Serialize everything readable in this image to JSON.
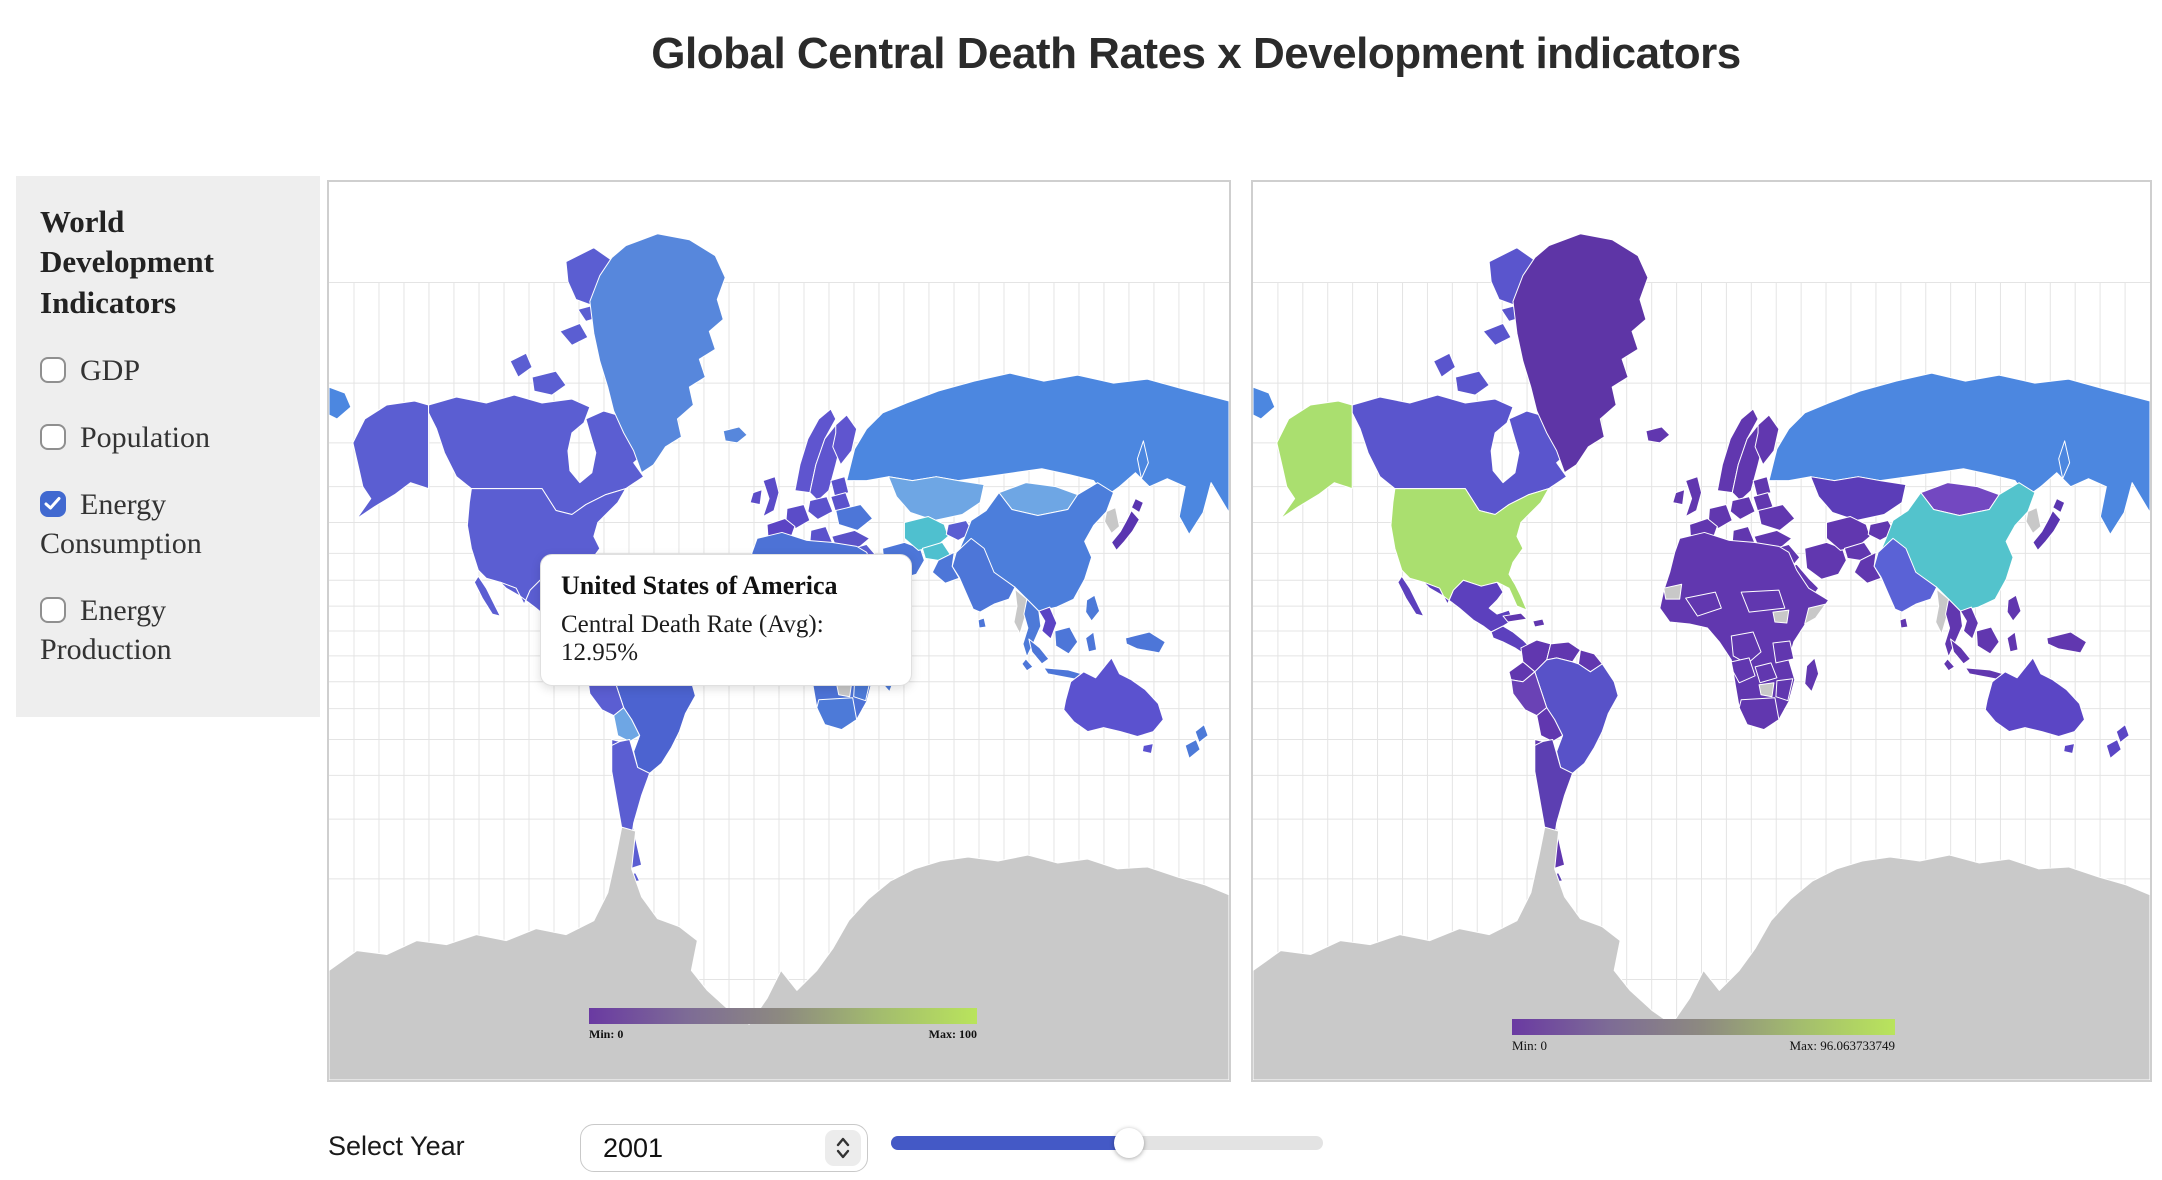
{
  "page": {
    "title": "Global Central Death Rates x Development indicators"
  },
  "sidebar": {
    "heading": "World Development Indicators",
    "items": [
      {
        "label": "GDP",
        "checked": false
      },
      {
        "label": "Population",
        "checked": false
      },
      {
        "label": "Energy Consumption",
        "checked": true
      },
      {
        "label": "Energy Production",
        "checked": false
      }
    ]
  },
  "tooltip": {
    "country": "United States of America",
    "line": "Central Death Rate (Avg): 12.95%"
  },
  "maps": {
    "left": {
      "legend": {
        "min_label": "Min: 0",
        "max_label": "Max: 100",
        "min": 0,
        "max": 100
      },
      "colors": {
        "default": "#5b5ed2",
        "chukotka": "#4c87e0",
        "alaska": "#5b5ed2",
        "canada": "#5b5ed2",
        "arctic1": "#5b5ed2",
        "arctic2": "#5b5ed2",
        "arctic3": "#5b5ed2",
        "arctic4": "#5b5ed2",
        "arctic5": "#5b5ed2",
        "arctic6": "#5b5ed2",
        "greenland": "#5787dc",
        "iceland": "#5787dc",
        "usa": "#5b5ed2",
        "baja": "#5b5ed2",
        "mexico": "#5b5ed2",
        "centralamerica": "#5b5ed2",
        "cuba": "#4d76d8",
        "hispaniola": "#4d76d8",
        "colombia": "#4d76d8",
        "venezuela": "#4d76d8",
        "guyanas": "#4d76d8",
        "brazil": "#4c63d0",
        "ecuador": "#5b5ed2",
        "peru": "#5b5ed2",
        "bolivia": "#6ea6e4",
        "chile": "#5b5ed2",
        "argentina": "#5b5ed2",
        "tierradelfuego": "#5b5ed2",
        "uk": "#5b4cc8",
        "ireland": "#5b4cc8",
        "norway": "#5f55cf",
        "sweden": "#5f55cf",
        "finland": "#5f55cf",
        "baltics": "#5b52cc",
        "france": "#5b44c4",
        "iberia": "#4d6fd6",
        "italy": "#5b52cc",
        "germany": "#5b4cc8",
        "poland": "#5b52cc",
        "balkans": "#5b52cc",
        "easteurope": "#5b52cc",
        "ukraine": "#4d76d8",
        "turkey": "#5b52c8",
        "iraqsyria": "#5b5ed2",
        "saudi": "#4d76d8",
        "iran": "#4d76d8",
        "russia": "#4c87e0",
        "sakhalin": "#4c87e0",
        "kazakhstan": "#6ea6e4",
        "centralasia": "#4fc0cf",
        "kyrgyz": "#5b5ed2",
        "afghan": "#4fc0cf",
        "pakistan": "#4d76d8",
        "mongolia": "#6ea6e4",
        "china": "#4c7edb",
        "korea": "#c8c8c8",
        "japan": "#5a35b0",
        "hokkaido": "#5a35b0",
        "india": "#4d76d8",
        "srilanka": "#4d76d8",
        "myanmar": "#c8c8c8",
        "thailand": "#4d7ad8",
        "vietnam": "#5b44c4",
        "malaysia": "#4d76d8",
        "sumatra": "#4d76d8",
        "java": "#4d76d8",
        "borneo": "#4d76d8",
        "sulawesi": "#4d76d8",
        "newguinea": "#4d76d8",
        "philippines": "#4d7ad8",
        "africa": "#4d72d6",
        "wsahara": "#4d72d6",
        "malipatch": "#5b52cc",
        "chadsudan": "#5b52cc",
        "somalia": "#5b52cc",
        "southsudan": "#4d72d6",
        "drc": "#4d72d6",
        "angola": "#4fc0c8",
        "zambia": "#4fc0c8",
        "tanzania": "#4fc0c8",
        "mozambique": "#4d7ad8",
        "zimbabwe": "#c8c8c8",
        "southafrica": "#4d7ad8",
        "madagascar": "#4d7ad8",
        "australia": "#5b52cf",
        "tasmania": "#5b52cf",
        "nz": "#4d7ad8",
        "antarctica": "#c9c9c9"
      }
    },
    "right": {
      "legend": {
        "min_label": "Min: 0",
        "max_label": "Max: 96.063733749",
        "min": 0,
        "max": 96.063733749
      },
      "colors": {
        "default": "#6137af",
        "chukotka": "#4c87e0",
        "alaska": "#aadf6f",
        "canada": "#5a55cd",
        "arctic1": "#5a55cd",
        "arctic2": "#5a55cd",
        "arctic3": "#5a55cd",
        "arctic4": "#5a55cd",
        "arctic5": "#5a55cd",
        "arctic6": "#5a55cd",
        "greenland": "#5e35a6",
        "iceland": "#6137af",
        "usa": "#aadf6f",
        "baja": "#5c40bd",
        "mexico": "#5c40bd",
        "centralamerica": "#5c40bd",
        "cuba": "#6137af",
        "hispaniola": "#6137af",
        "colombia": "#6137af",
        "venezuela": "#6137af",
        "guyanas": "#6137af",
        "brazil": "#5852c8",
        "ecuador": "#6137af",
        "peru": "#6a42b5",
        "bolivia": "#6137af",
        "chile": "#6137af",
        "argentina": "#5c3fb2",
        "tierradelfuego": "#5c3fb2",
        "uk": "#6137af",
        "ireland": "#6137af",
        "norway": "#6137af",
        "sweden": "#6137af",
        "finland": "#6137af",
        "baltics": "#6137af",
        "france": "#6137af",
        "iberia": "#6137af",
        "italy": "#6137af",
        "germany": "#6137af",
        "poland": "#6137af",
        "balkans": "#6137af",
        "easteurope": "#6137af",
        "ukraine": "#6137af",
        "turkey": "#6137af",
        "iraqsyria": "#6137af",
        "saudi": "#6137af",
        "iran": "#6137af",
        "russia": "#4c87e0",
        "sakhalin": "#4c87e0",
        "kazakhstan": "#5b3db8",
        "centralasia": "#6137af",
        "kyrgyz": "#6137af",
        "afghan": "#6137af",
        "pakistan": "#6137af",
        "mongolia": "#7348c1",
        "china": "#53c3cc",
        "korea": "#c8c8c8",
        "japan": "#5a35b0",
        "hokkaido": "#5a35b0",
        "india": "#5a62d6",
        "srilanka": "#6137af",
        "myanmar": "#c8c8c8",
        "thailand": "#6137af",
        "vietnam": "#6137af",
        "malaysia": "#6137af",
        "sumatra": "#6137af",
        "java": "#6137af",
        "borneo": "#6137af",
        "sulawesi": "#6137af",
        "newguinea": "#6137af",
        "philippines": "#6137af",
        "africa": "#6137af",
        "wsahara": "#c8c8c8",
        "malipatch": "#6137af",
        "chadsudan": "#6137af",
        "somalia": "#c8c8c8",
        "southsudan": "#c8c8c8",
        "drc": "#6137af",
        "angola": "#6137af",
        "zambia": "#6137af",
        "tanzania": "#6137af",
        "mozambique": "#6137af",
        "zimbabwe": "#c8c8c8",
        "southafrica": "#6137af",
        "madagascar": "#6137af",
        "australia": "#5b46c5",
        "tasmania": "#5b46c5",
        "nz": "#5b46c5",
        "antarctica": "#c9c9c9"
      }
    }
  },
  "controls": {
    "year_label": "Select Year",
    "year_value": "2001",
    "slider_percent": 55
  },
  "colors": {
    "accent_blue": "#4459c6",
    "checkbox_blue": "#4169d0",
    "no_data_gray": "#c8c8c8",
    "legend_gradient": [
      "#6a3aa2",
      "#7d6b96",
      "#8d8a80",
      "#a3bc6e",
      "#b9e45c"
    ]
  },
  "chart_data": [
    {
      "type": "heatmap",
      "subtype": "choropleth-world-map",
      "legend": {
        "min": 0,
        "max": 100,
        "min_label": "Min: 0",
        "max_label": "Max: 100"
      },
      "colorscale": [
        "#6a3aa2",
        "#b9e45c"
      ],
      "tooltip_reading": {
        "country": "United States of America",
        "metric": "Central Death Rate (Avg)",
        "value_percent": 12.95
      }
    },
    {
      "type": "heatmap",
      "subtype": "choropleth-world-map",
      "legend": {
        "min": 0,
        "max": 96.063733749,
        "min_label": "Min: 0",
        "max_label": "Max: 96.063733749"
      },
      "colorscale": [
        "#6a3aa2",
        "#b9e45c"
      ]
    }
  ]
}
